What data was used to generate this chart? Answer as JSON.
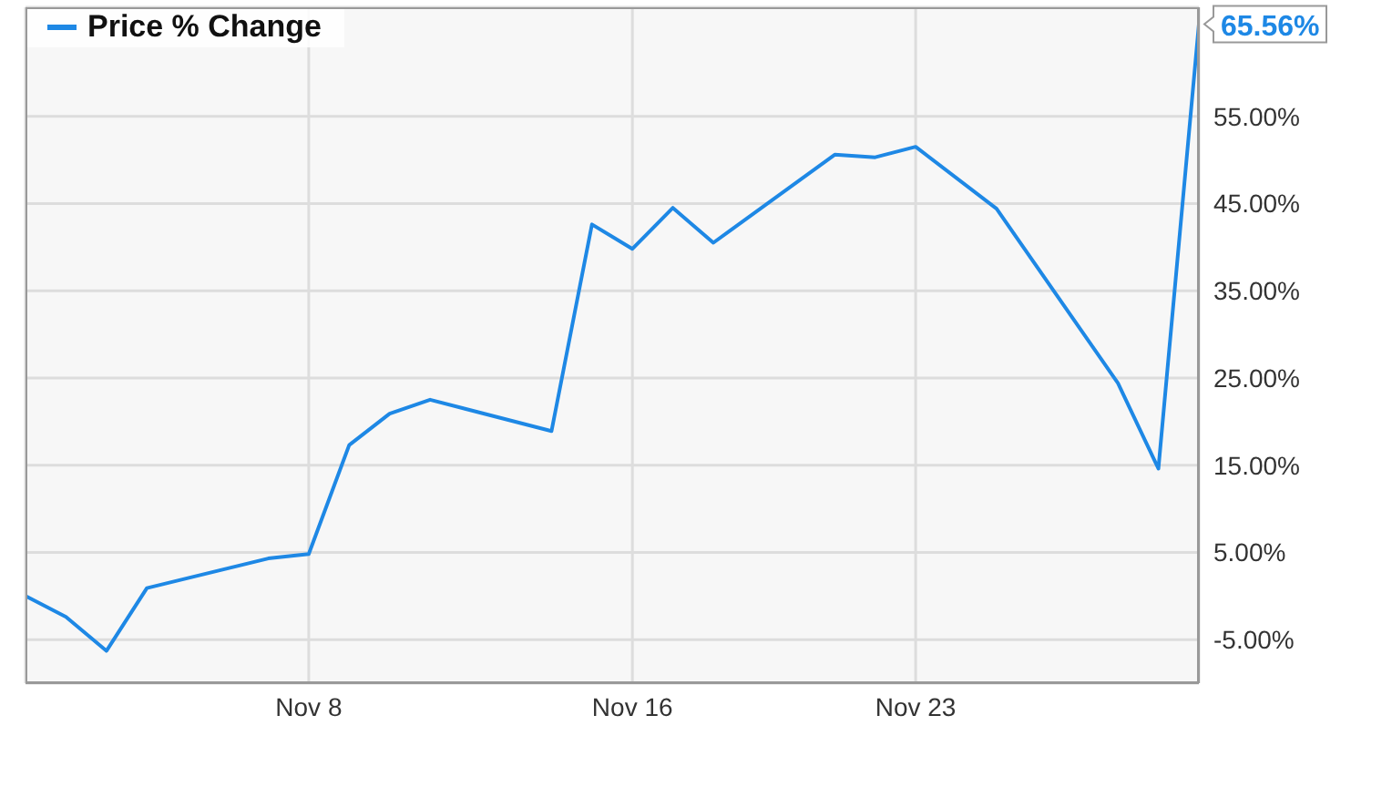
{
  "chart_data": {
    "type": "line",
    "x": [
      "--11-01",
      "--11-02",
      "--11-03",
      "--11-04",
      "--11-07",
      "--11-08",
      "--11-09",
      "--11-10",
      "--11-11",
      "--11-14",
      "--11-15",
      "--11-16",
      "--11-17",
      "--11-18",
      "--11-21",
      "--11-22",
      "--11-23",
      "--11-25",
      "--11-28",
      "--11-29",
      "--11-30"
    ],
    "series": [
      {
        "name": "Price % Change",
        "color": "#1e88e5",
        "values": [
          0,
          -2.4,
          -6.3,
          0.9,
          4.3,
          4.8,
          17.3,
          20.9,
          22.5,
          18.9,
          42.6,
          39.8,
          44.5,
          40.5,
          50.6,
          50.3,
          51.5,
          44.4,
          24.4,
          14.6,
          65.56
        ],
        "value_labels": [
          null,
          null,
          null,
          null,
          null,
          null,
          null,
          null,
          null,
          null,
          null,
          null,
          null,
          null,
          null,
          null,
          null,
          null,
          null,
          null,
          "65.56%"
        ]
      }
    ],
    "xlim": [
      "--11-01",
      "--11-30"
    ],
    "xticks": [
      {
        "value": "--11-08",
        "label": "Nov 8"
      },
      {
        "value": "--11-16",
        "label": "Nov 16"
      },
      {
        "value": "--11-23",
        "label": "Nov 23"
      }
    ],
    "ylim": [
      -10,
      67.5
    ],
    "yticks": [
      {
        "value": -5,
        "label": "-5.00%"
      },
      {
        "value": 5,
        "label": "5.00%"
      },
      {
        "value": 15,
        "label": "15.00%"
      },
      {
        "value": 25,
        "label": "25.00%"
      },
      {
        "value": 35,
        "label": "35.00%"
      },
      {
        "value": 45,
        "label": "45.00%"
      },
      {
        "value": 55,
        "label": "55.00%"
      }
    ],
    "grid": true,
    "legend": "top left",
    "marker": "none"
  }
}
